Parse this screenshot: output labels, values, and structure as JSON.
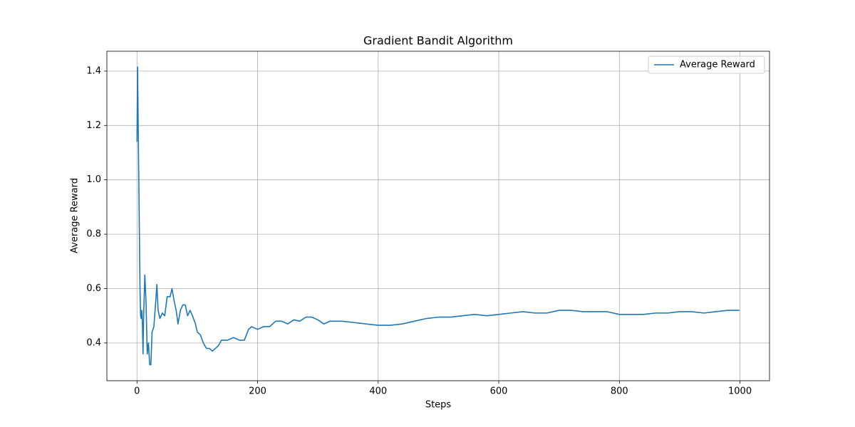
{
  "chart_data": {
    "type": "line",
    "title": "Gradient Bandit Algorithm",
    "x_label": "Steps",
    "y_label": "Average Reward",
    "x": [
      0,
      1,
      2,
      3,
      4,
      5,
      6,
      7,
      8,
      9,
      10,
      11,
      13,
      15,
      17,
      19,
      21,
      23,
      25,
      28,
      31,
      33,
      35,
      38,
      42,
      46,
      50,
      55,
      58,
      62,
      65,
      68,
      72,
      76,
      80,
      84,
      88,
      92,
      97,
      100,
      105,
      110,
      115,
      120,
      125,
      130,
      135,
      140,
      150,
      160,
      170,
      178,
      185,
      190,
      200,
      210,
      220,
      230,
      240,
      250,
      260,
      270,
      280,
      290,
      300,
      310,
      320,
      340,
      360,
      380,
      400,
      420,
      440,
      460,
      480,
      500,
      520,
      540,
      560,
      580,
      600,
      620,
      640,
      660,
      680,
      700,
      720,
      740,
      760,
      780,
      800,
      820,
      840,
      860,
      880,
      900,
      920,
      940,
      960,
      980,
      999
    ],
    "series": [
      {
        "name": "Average Reward",
        "color": "#1f77b4",
        "values": [
          1.14,
          1.415,
          1.2,
          1.0,
          0.8,
          0.6,
          0.5,
          0.49,
          0.52,
          0.47,
          0.36,
          0.5,
          0.65,
          0.55,
          0.36,
          0.4,
          0.32,
          0.32,
          0.44,
          0.46,
          0.55,
          0.615,
          0.52,
          0.49,
          0.51,
          0.5,
          0.57,
          0.57,
          0.6,
          0.55,
          0.52,
          0.47,
          0.52,
          0.54,
          0.54,
          0.5,
          0.52,
          0.5,
          0.47,
          0.44,
          0.43,
          0.4,
          0.38,
          0.38,
          0.37,
          0.38,
          0.39,
          0.41,
          0.41,
          0.42,
          0.41,
          0.41,
          0.45,
          0.46,
          0.45,
          0.46,
          0.46,
          0.48,
          0.48,
          0.47,
          0.485,
          0.48,
          0.495,
          0.495,
          0.485,
          0.47,
          0.48,
          0.48,
          0.475,
          0.47,
          0.465,
          0.465,
          0.47,
          0.48,
          0.49,
          0.495,
          0.495,
          0.5,
          0.505,
          0.5,
          0.505,
          0.51,
          0.515,
          0.51,
          0.51,
          0.52,
          0.52,
          0.515,
          0.515,
          0.515,
          0.505,
          0.505,
          0.505,
          0.51,
          0.51,
          0.515,
          0.515,
          0.51,
          0.515,
          0.52,
          0.52
        ]
      }
    ],
    "xlim": [
      -49.95,
      1048.95
    ],
    "ylim": [
      0.261,
      1.473
    ],
    "xticks": [
      0,
      200,
      400,
      600,
      800,
      1000
    ],
    "yticks": [
      0.4,
      0.6,
      0.8,
      {
        "value": 1,
        "label": "1.0"
      },
      1.2,
      1.4
    ],
    "grid": true,
    "legend": "upper-right"
  }
}
